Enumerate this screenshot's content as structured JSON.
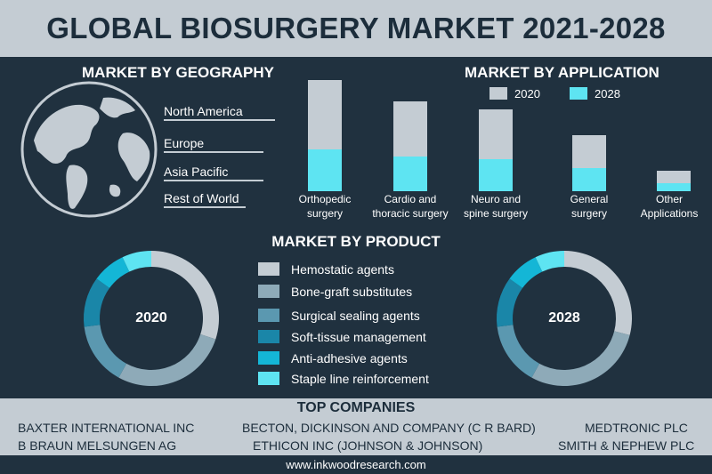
{
  "title": "GLOBAL BIOSURGERY MARKET 2021-2028",
  "geography": {
    "heading": "MARKET BY GEOGRAPHY",
    "regions": [
      "North America",
      "Europe",
      "Asia Pacific",
      "Rest of  World"
    ]
  },
  "application": {
    "heading": "MARKET BY APPLICATION",
    "legend": [
      "2020",
      "2028"
    ]
  },
  "product": {
    "heading": "MARKET BY PRODUCT",
    "items": [
      "Hemostatic agents",
      "Bone-graft substitutes",
      "Surgical sealing agents",
      "Soft-tissue management",
      "Anti-adhesive agents",
      "Staple line reinforcement"
    ],
    "colors": [
      "#c4ccd3",
      "#8eaab8",
      "#5b98b0",
      "#1a86a8",
      "#14b6d6",
      "#5ee4f2"
    ]
  },
  "companies": {
    "heading": "TOP COMPANIES",
    "row1": [
      "BAXTER INTERNATIONAL INC",
      "BECTON, DICKINSON AND COMPANY (C R BARD)",
      "MEDTRONIC PLC"
    ],
    "row2": [
      "B BRAUN MELSUNGEN AG",
      "ETHICON INC (JOHNSON & JOHNSON)",
      "SMITH & NEPHEW PLC"
    ]
  },
  "footer": "www.inkwoodresearch.com",
  "colors": {
    "background": "#20313f",
    "band": "#c4ccd3",
    "title_text": "#1c2d3b",
    "series_2020": "#c4ccd3",
    "series_2028": "#5ee4f2"
  },
  "chart_data": [
    {
      "type": "bar",
      "title": "MARKET BY APPLICATION",
      "categories": [
        "Orthopedic\nsurgery",
        "Cardio and\nthoracic surgery",
        "Neuro and\nspine surgery",
        "General\nsurgery",
        "Other\nApplications"
      ],
      "series": [
        {
          "name": "2020",
          "values": [
            125,
            101,
            92,
            63,
            23
          ]
        },
        {
          "name": "2028",
          "values": [
            47,
            39,
            36,
            26,
            9
          ]
        }
      ],
      "ylim": [
        0,
        125
      ],
      "grid": false,
      "legend": "top-right"
    },
    {
      "type": "pie",
      "center_label": "2020",
      "labels": [
        "Hemostatic agents",
        "Bone-graft substitutes",
        "Surgical sealing agents",
        "Soft-tissue management",
        "Anti-adhesive agents",
        "Staple line reinforcement"
      ],
      "values": [
        30,
        28,
        15,
        12,
        8,
        7
      ]
    },
    {
      "type": "pie",
      "center_label": "2028",
      "labels": [
        "Hemostatic agents",
        "Bone-graft substitutes",
        "Surgical sealing agents",
        "Soft-tissue management",
        "Anti-adhesive agents",
        "Staple line reinforcement"
      ],
      "values": [
        29,
        29,
        15,
        12,
        8,
        7
      ]
    }
  ]
}
